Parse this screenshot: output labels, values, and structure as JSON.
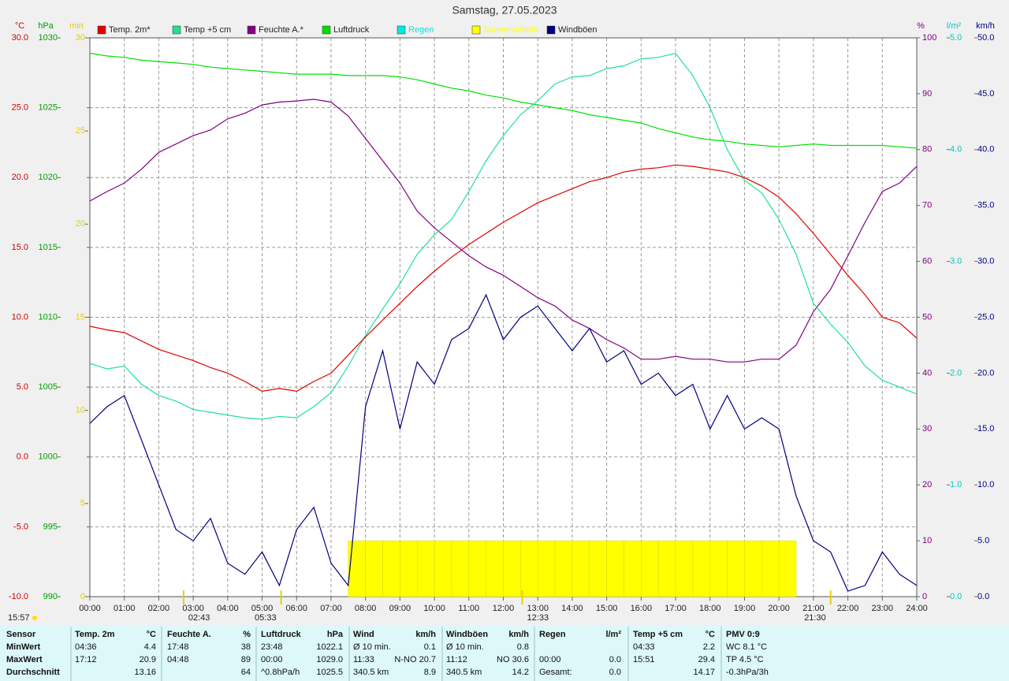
{
  "chart_data": {
    "type": "line",
    "title": "Samstag, 27.05.2023",
    "grid": true,
    "xlim": [
      0,
      24
    ],
    "xticks": [
      {
        "value": 0,
        "label": "00:00"
      },
      {
        "value": 1,
        "label": "01:00"
      },
      {
        "value": 2,
        "label": "02:00"
      },
      {
        "value": 3,
        "label": "03:00"
      },
      {
        "value": 4,
        "label": "04:00"
      },
      {
        "value": 5,
        "label": "05:00"
      },
      {
        "value": 6,
        "label": "06:00"
      },
      {
        "value": 7,
        "label": "07:00"
      },
      {
        "value": 8,
        "label": "08:00"
      },
      {
        "value": 9,
        "label": "09:00"
      },
      {
        "value": 10,
        "label": "10:00"
      },
      {
        "value": 11,
        "label": "11:00"
      },
      {
        "value": 12,
        "label": "12:00"
      },
      {
        "value": 13,
        "label": "13:00"
      },
      {
        "value": 14,
        "label": "14:00"
      },
      {
        "value": 15,
        "label": "15:00"
      },
      {
        "value": 16,
        "label": "16:00"
      },
      {
        "value": 17,
        "label": "17:00"
      },
      {
        "value": 18,
        "label": "18:00"
      },
      {
        "value": 19,
        "label": "19:00"
      },
      {
        "value": 20,
        "label": "20:00"
      },
      {
        "value": 21,
        "label": "21:00"
      },
      {
        "value": 22,
        "label": "22:00"
      },
      {
        "value": 23,
        "label": "23:00"
      },
      {
        "value": 24,
        "label": "24:00"
      }
    ],
    "axes": [
      {
        "unit": "°C",
        "color": "#d00000",
        "lim": [
          -10,
          30
        ],
        "ticks": [
          {
            "value": -10,
            "label": "-10.0"
          },
          {
            "value": -5,
            "label": "-5.0"
          },
          {
            "value": 0,
            "label": "0.0"
          },
          {
            "value": 5,
            "label": "5.0"
          },
          {
            "value": 10,
            "label": "10.0"
          },
          {
            "value": 15,
            "label": "15.0"
          },
          {
            "value": 20,
            "label": "20.0"
          },
          {
            "value": 25,
            "label": "25.0"
          },
          {
            "value": 30,
            "label": "30.0"
          }
        ]
      },
      {
        "unit": "hPa",
        "color": "#00a000",
        "lim": [
          990,
          1030
        ],
        "ticks": [
          990,
          995,
          1000,
          1005,
          1010,
          1015,
          1020,
          1025,
          1030
        ]
      },
      {
        "unit": "min",
        "color": "#e0d000",
        "lim": [
          0,
          30
        ],
        "ticks": [
          0,
          5,
          10,
          15,
          20,
          25,
          30
        ]
      },
      {
        "unit": "%",
        "color": "#800080",
        "lim": [
          0,
          100
        ],
        "ticks": [
          0,
          10,
          20,
          30,
          40,
          50,
          60,
          70,
          80,
          90,
          100
        ]
      },
      {
        "unit": "l/m²",
        "color": "#00c8c8",
        "lim": [
          0,
          5
        ],
        "ticks": [
          {
            "value": 0,
            "label": "0.0"
          },
          {
            "value": 1,
            "label": "1.0"
          },
          {
            "value": 2,
            "label": "2.0"
          },
          {
            "value": 3,
            "label": "3.0"
          },
          {
            "value": 4,
            "label": "4.0"
          },
          {
            "value": 5,
            "label": "5.0"
          }
        ]
      },
      {
        "unit": "km/h",
        "color": "#000080",
        "lim": [
          0,
          50
        ],
        "ticks": [
          {
            "value": 0,
            "label": "0.0"
          },
          {
            "value": 5,
            "label": "5.0"
          },
          {
            "value": 10,
            "label": "10.0"
          },
          {
            "value": 15,
            "label": "15.0"
          },
          {
            "value": 20,
            "label": "20.0"
          },
          {
            "value": 25,
            "label": "25.0"
          },
          {
            "value": 30,
            "label": "30.0"
          },
          {
            "value": 35,
            "label": "35.0"
          },
          {
            "value": 40,
            "label": "40.0"
          },
          {
            "value": 45,
            "label": "45.0"
          },
          {
            "value": 50,
            "label": "50.0"
          }
        ]
      }
    ],
    "x": [
      0,
      0.5,
      1,
      1.5,
      2,
      2.5,
      3,
      3.5,
      4,
      4.5,
      5,
      5.5,
      6,
      6.5,
      7,
      7.5,
      8,
      8.5,
      9,
      9.5,
      10,
      10.5,
      11,
      11.5,
      12,
      12.5,
      13,
      13.5,
      14,
      14.5,
      15,
      15.5,
      16,
      16.5,
      17,
      17.5,
      18,
      18.5,
      19,
      19.5,
      20,
      20.5,
      21,
      21.5,
      22,
      22.5,
      23,
      23.5,
      24
    ],
    "series": [
      {
        "name": "Temp. 2m*",
        "color": "#e00000",
        "axis": 0,
        "style": "line",
        "values": [
          9.35,
          9.1,
          8.9,
          8.3,
          7.7,
          7.3,
          6.9,
          6.4,
          6.0,
          5.4,
          4.7,
          4.9,
          4.7,
          5.4,
          6.0,
          7.3,
          8.6,
          9.8,
          11.0,
          12.2,
          13.3,
          14.3,
          15.2,
          16.0,
          16.8,
          17.5,
          18.2,
          18.7,
          19.2,
          19.7,
          20.0,
          20.4,
          20.6,
          20.7,
          20.9,
          20.8,
          20.6,
          20.4,
          20.0,
          19.4,
          18.6,
          17.4,
          16.0,
          14.5,
          13.0,
          11.6,
          10.0,
          9.6,
          8.5
        ]
      },
      {
        "name": "Temp +5 cm",
        "color": "#20e090",
        "axis": 0,
        "style": "line",
        "values": [
          6.7,
          6.3,
          6.5,
          5.2,
          4.4,
          4.0,
          3.4,
          3.2,
          3.0,
          2.8,
          2.7,
          2.9,
          2.8,
          3.6,
          4.6,
          6.5,
          8.7,
          10.6,
          12.4,
          14.5,
          15.9,
          17.0,
          19.0,
          21.2,
          23.0,
          24.5,
          25.5,
          26.7,
          27.2,
          27.3,
          27.8,
          28.0,
          28.5,
          28.6,
          28.9,
          27.3,
          25.0,
          22.0,
          19.8,
          18.9,
          17.0,
          14.5,
          11.0,
          9.5,
          8.2,
          6.5,
          5.5,
          5.0,
          4.5
        ]
      },
      {
        "name": "Feuchte A.*",
        "color": "#800080",
        "axis": 3,
        "style": "line",
        "values": [
          70.8,
          72.5,
          74,
          76.5,
          79.5,
          81,
          82.5,
          83.5,
          85.5,
          86.5,
          88,
          88.5,
          88.7,
          89,
          88.5,
          86,
          82,
          78,
          74,
          69,
          66,
          63.5,
          61,
          59,
          57.5,
          55.5,
          53.5,
          52,
          49.5,
          48,
          46,
          44.5,
          42.5,
          42.5,
          43,
          42.5,
          42.5,
          42,
          42,
          42.5,
          42.5,
          45,
          51,
          55,
          61,
          67,
          72.5,
          74,
          77
        ]
      },
      {
        "name": "Luftdruck",
        "color": "#00e000",
        "axis": 1,
        "style": "line",
        "values": [
          1028.9,
          1028.7,
          1028.6,
          1028.4,
          1028.3,
          1028.2,
          1028.1,
          1027.9,
          1027.8,
          1027.7,
          1027.6,
          1027.5,
          1027.4,
          1027.4,
          1027.4,
          1027.3,
          1027.3,
          1027.3,
          1027.2,
          1027.0,
          1026.7,
          1026.4,
          1026.2,
          1025.9,
          1025.7,
          1025.4,
          1025.2,
          1025.0,
          1024.8,
          1024.5,
          1024.3,
          1024.1,
          1023.9,
          1023.5,
          1023.2,
          1022.9,
          1022.7,
          1022.6,
          1022.4,
          1022.3,
          1022.2,
          1022.3,
          1022.4,
          1022.3,
          1022.3,
          1022.3,
          1022.3,
          1022.2,
          1022.1
        ]
      },
      {
        "name": "Regen",
        "color": "#00e8e8",
        "axis": 4,
        "style": "bars",
        "values": [
          0,
          0,
          0,
          0,
          0,
          0,
          0,
          0,
          0,
          0,
          0,
          0,
          0,
          0,
          0,
          0,
          0,
          0,
          0,
          0,
          0,
          0,
          0,
          0,
          0,
          0,
          0,
          0,
          0,
          0,
          0,
          0,
          0,
          0,
          0,
          0,
          0,
          0,
          0,
          0,
          0,
          0,
          0,
          0,
          0,
          0,
          0,
          0,
          0
        ]
      },
      {
        "name": "Sonnenschein",
        "color": "#ffff00",
        "axis": 2,
        "style": "bars",
        "values": [
          0,
          0,
          0,
          0,
          0,
          0,
          0,
          0,
          0,
          0,
          0,
          0,
          0,
          0,
          0,
          3,
          3,
          3,
          3,
          3,
          3,
          3,
          3,
          3,
          3,
          3,
          3,
          3,
          3,
          3,
          3,
          3,
          3,
          3,
          3,
          3,
          3,
          3,
          3,
          3,
          3,
          0,
          0,
          0,
          0,
          0,
          0,
          0,
          0
        ]
      },
      {
        "name": "Windböen",
        "color": "#000080",
        "axis": 5,
        "style": "line",
        "values": [
          15.5,
          17,
          18,
          14,
          10,
          6,
          5,
          7,
          3,
          2,
          4,
          1,
          6,
          8,
          3,
          1,
          17,
          22,
          15,
          21,
          19,
          23,
          24,
          27,
          23,
          25,
          26,
          24,
          22,
          24,
          21,
          22,
          19,
          20,
          18,
          19,
          15,
          18,
          15,
          16,
          15,
          9,
          5,
          4,
          0.5,
          1,
          4,
          2,
          1
        ]
      }
    ],
    "annotations": [
      {
        "label": "15:57"
      },
      {
        "value": 2.72,
        "label": "02:43"
      },
      {
        "value": 5.55,
        "label": "05:33"
      },
      {
        "value": 12.55,
        "label": "12:33"
      },
      {
        "value": 21.5,
        "label": "21:30"
      }
    ]
  },
  "table": {
    "rows": [
      [
        "Sensor",
        "Temp. 2m",
        "°C",
        "Feuchte A.",
        "%",
        "Luftdruck",
        "hPa",
        "Wind",
        "km/h",
        "Windböen",
        "km/h",
        "Regen",
        "l/m²",
        "Temp +5 cm",
        "°C",
        "PMV 0:9"
      ],
      [
        "MinWert",
        "04:36",
        "4.4",
        "17:48",
        "38",
        "23:48",
        "1022.1",
        "Ø 10 min.",
        "0.1",
        "Ø 10 min.",
        "0.8",
        null,
        null,
        "04:33",
        "2.2",
        "WC 8.1 °C"
      ],
      [
        "MaxWert",
        "17:12",
        "20.9",
        "04:48",
        "89",
        "00:00",
        "1029.0",
        "11:33",
        "N-NO 20.7",
        "11:12",
        "NO 30.6",
        "00:00",
        "0.0",
        "15:51",
        "29.4",
        "TP 4.5 °C"
      ],
      [
        "Durchschnitt",
        null,
        "13.16",
        null,
        "64",
        "^0.8hPa/h",
        "1025.5",
        "340.5 km",
        "8.9",
        "340.5 km",
        "14.2",
        "Gesamt:",
        "0.0",
        null,
        "14.17",
        "-0.3hPa/3h"
      ]
    ]
  }
}
